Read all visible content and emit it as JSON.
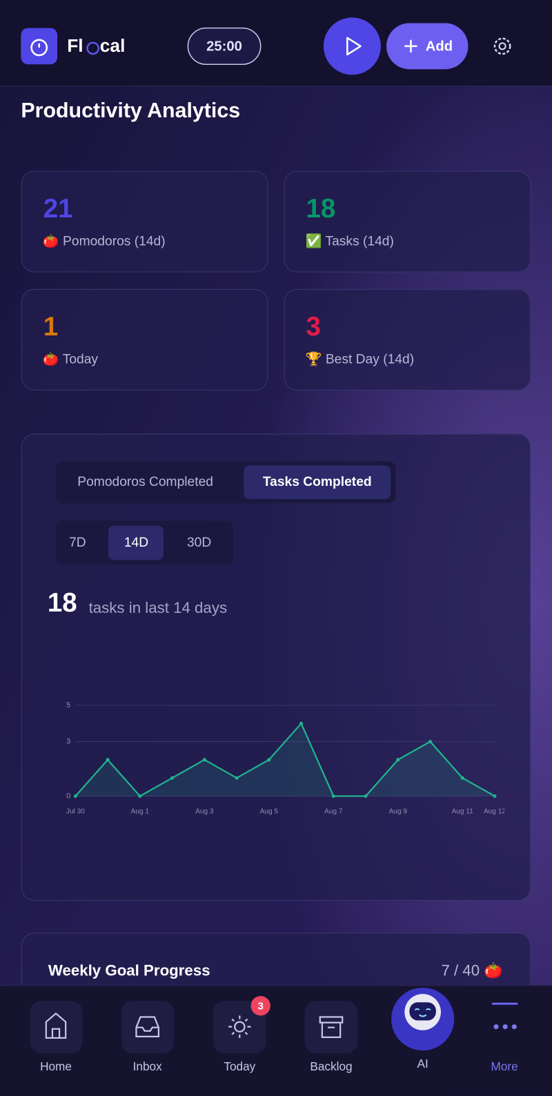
{
  "header": {
    "brand": [
      "Fl",
      "cal"
    ],
    "timer": "25:00",
    "add": "Add"
  },
  "page_title": "Productivity Analytics",
  "stats": [
    {
      "value": 21,
      "label": "🍅 Pomodoros (14d)",
      "color": "#4f46e5"
    },
    {
      "value": 18,
      "label": "✅ Tasks (14d)",
      "color": "#059669"
    },
    {
      "value": 1,
      "label": "🍅 Today",
      "color": "#d97706"
    },
    {
      "value": 3,
      "label": "🏆 Best Day (14d)",
      "color": "#e11d48"
    }
  ],
  "tabs": [
    "Pomodoros Completed",
    "Tasks Completed"
  ],
  "ranges": [
    "7D",
    "14D",
    "30D"
  ],
  "summary": {
    "value": 18,
    "text": "tasks in last 14 days"
  },
  "chart_data": {
    "type": "line",
    "categories": [
      "Jul 30",
      null,
      "Aug 1",
      null,
      "Aug 3",
      null,
      "Aug 5",
      null,
      "Aug 7",
      null,
      "Aug 9",
      null,
      "Aug 11",
      "Aug 12"
    ],
    "values": [
      0,
      2,
      0,
      1,
      2,
      1,
      2,
      4,
      0,
      0,
      2,
      3,
      1,
      0
    ],
    "color": "#1fb58f",
    "ylim": [
      0,
      5
    ],
    "yticks": [
      0,
      3,
      5
    ],
    "grid": true
  },
  "weekly_goal": {
    "title": "Weekly Goal Progress",
    "progress": "7 / 40 🍅"
  },
  "nav": [
    {
      "label": "Home"
    },
    {
      "label": "Inbox"
    },
    {
      "label": "Today",
      "badge": 3
    },
    {
      "label": "Backlog"
    },
    {
      "label": "AI"
    },
    {
      "label": "More"
    }
  ]
}
